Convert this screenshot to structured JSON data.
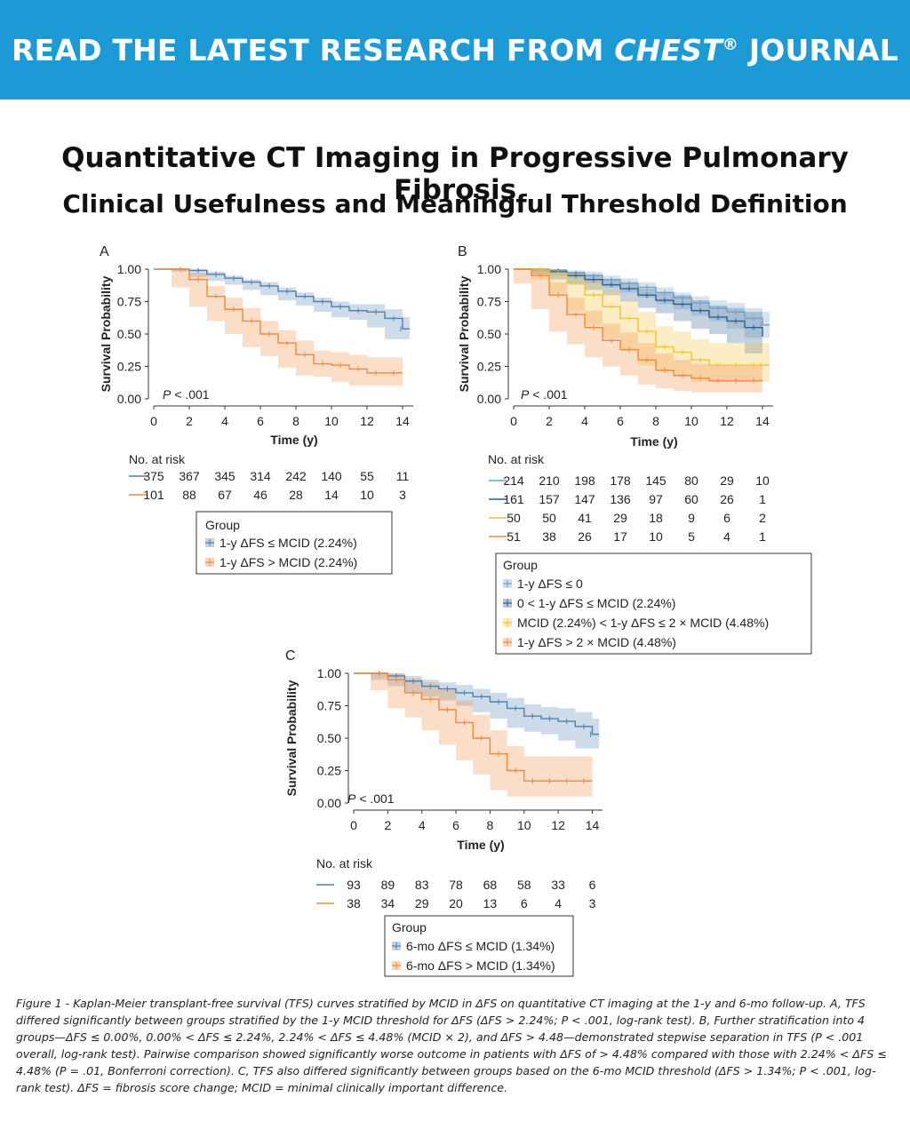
{
  "banner": {
    "text_before": "READ THE LATEST RESEARCH FROM ",
    "brand": "CHEST",
    "reg": "®",
    "text_after": " JOURNAL"
  },
  "title": "Quantitative CT Imaging in Progressive Pulmonary Fibrosis",
  "subtitle": "Clinical Usefulness and Meaningful Threshold Definition",
  "caption": "Figure 1 - Kaplan-Meier transplant-free survival (TFS) curves stratified by MCID in ΔFS on quantitative CT imaging at the 1-y and 6-mo follow-up. A, TFS differed significantly between groups stratified by the 1-y MCID threshold for ΔFS (ΔFS > 2.24%; P < .001, log-rank test). B, Further stratification into 4 groups—ΔFS ≤ 0.00%, 0.00% < ΔFS ≤ 2.24%, 2.24% < ΔFS ≤ 4.48% (MCID × 2), and ΔFS > 4.48—demonstrated stepwise separation in TFS (P < .001 overall, log-rank test). Pairwise comparison showed significantly worse outcome in patients with ΔFS of > 4.48% compared with those with 2.24% < ΔFS ≤ 4.48% (P = .01, Bonferroni correction). C, TFS also differed significantly between groups based on the 6-mo MCID threshold (ΔFS > 1.34%; P < .001, log-rank test). ΔFS = fibrosis score change; MCID = minimal clinically important difference.",
  "colors": {
    "banner": "#1c9ad6",
    "blue_light": "#6f9fc6",
    "blue_dark": "#2c5f8e",
    "yellow": "#f2c232",
    "orange": "#ef8a3a"
  },
  "chart_data": [
    {
      "panel": "A",
      "type": "line",
      "xlabel": "Time (y)",
      "ylabel": "Survival Probability",
      "xlim": [
        0,
        14.6
      ],
      "ylim": [
        0,
        1
      ],
      "x_ticks": [
        0,
        2,
        4,
        6,
        8,
        10,
        12,
        14
      ],
      "y_ticks": [
        "0.00",
        "0.25",
        "0.50",
        "0.75",
        "1.00"
      ],
      "pvalue_prefix": "P",
      "pvalue_text": " < .001",
      "risk_title": "No. at risk",
      "legend_title": "Group",
      "series": [
        {
          "name": "1-y ΔFS ≤ MCID (2.24%)",
          "color": "#4f7fae",
          "risk": [
            "375",
            "367",
            "345",
            "314",
            "242",
            "140",
            "55",
            "11"
          ],
          "x": [
            0,
            1,
            2,
            3,
            4,
            5,
            6,
            7,
            8,
            9,
            10,
            11,
            12,
            13,
            14,
            14.4
          ],
          "y": [
            1.0,
            1.0,
            0.99,
            0.96,
            0.93,
            0.9,
            0.87,
            0.83,
            0.79,
            0.75,
            0.71,
            0.68,
            0.67,
            0.62,
            0.54,
            0.54
          ],
          "lower": [
            1.0,
            1.0,
            0.98,
            0.94,
            0.91,
            0.88,
            0.84,
            0.8,
            0.76,
            0.72,
            0.67,
            0.63,
            0.61,
            0.55,
            0.46,
            0.46
          ],
          "upper": [
            1.0,
            1.0,
            1.0,
            0.98,
            0.95,
            0.92,
            0.9,
            0.86,
            0.82,
            0.78,
            0.75,
            0.73,
            0.73,
            0.69,
            0.63,
            0.63
          ]
        },
        {
          "name": "1-y ΔFS > MCID (2.24%)",
          "color": "#ef8a3a",
          "risk": [
            "101",
            "88",
            "67",
            "46",
            "28",
            "14",
            "10",
            "3"
          ],
          "x": [
            0,
            1,
            2,
            3,
            4,
            5,
            6,
            7,
            8,
            9,
            10,
            11,
            12,
            13,
            14
          ],
          "y": [
            1.0,
            1.0,
            0.92,
            0.79,
            0.69,
            0.6,
            0.5,
            0.43,
            0.34,
            0.27,
            0.26,
            0.23,
            0.2,
            0.2,
            0.2
          ],
          "lower": [
            1.0,
            1.0,
            0.86,
            0.71,
            0.6,
            0.5,
            0.4,
            0.33,
            0.24,
            0.18,
            0.17,
            0.13,
            0.1,
            0.1,
            0.1
          ],
          "upper": [
            1.0,
            1.0,
            0.97,
            0.87,
            0.78,
            0.7,
            0.6,
            0.53,
            0.45,
            0.37,
            0.36,
            0.34,
            0.32,
            0.32,
            0.32
          ]
        }
      ]
    },
    {
      "panel": "B",
      "type": "line",
      "xlabel": "Time (y)",
      "ylabel": "Survival Probability",
      "xlim": [
        0,
        14.6
      ],
      "ylim": [
        0,
        1
      ],
      "x_ticks": [
        0,
        2,
        4,
        6,
        8,
        10,
        12,
        14
      ],
      "y_ticks": [
        "0.00",
        "0.25",
        "0.50",
        "0.75",
        "1.00"
      ],
      "pvalue_prefix": "P",
      "pvalue_text": " < .001",
      "risk_title": "No. at risk",
      "legend_title": "Group",
      "series": [
        {
          "name": "1-y ΔFS ≤ 0",
          "color": "#6f9fc6",
          "risk": [
            "214",
            "210",
            "198",
            "178",
            "145",
            "80",
            "29",
            "10"
          ],
          "x": [
            0,
            1,
            2,
            3,
            4,
            5,
            6,
            7,
            8,
            9,
            10,
            11,
            12,
            13,
            14,
            14.4
          ],
          "y": [
            1.0,
            1.0,
            0.99,
            0.97,
            0.95,
            0.92,
            0.89,
            0.86,
            0.82,
            0.78,
            0.74,
            0.7,
            0.67,
            0.62,
            0.57,
            0.57
          ],
          "lower": [
            1.0,
            1.0,
            0.98,
            0.95,
            0.93,
            0.89,
            0.86,
            0.82,
            0.78,
            0.73,
            0.69,
            0.64,
            0.6,
            0.54,
            0.47,
            0.47
          ],
          "upper": [
            1.0,
            1.0,
            1.0,
            0.99,
            0.98,
            0.95,
            0.93,
            0.9,
            0.86,
            0.82,
            0.79,
            0.76,
            0.74,
            0.7,
            0.67,
            0.67
          ]
        },
        {
          "name": "0 < 1-y ΔFS ≤ MCID (2.24%)",
          "color": "#2c5f8e",
          "risk": [
            "161",
            "157",
            "147",
            "136",
            "97",
            "60",
            "26",
            "1"
          ],
          "x": [
            0,
            1,
            2,
            3,
            4,
            5,
            6,
            7,
            8,
            9,
            10,
            11,
            12,
            13,
            14
          ],
          "y": [
            1.0,
            1.0,
            0.98,
            0.95,
            0.92,
            0.88,
            0.85,
            0.8,
            0.76,
            0.73,
            0.68,
            0.63,
            0.6,
            0.55,
            0.48
          ],
          "lower": [
            1.0,
            1.0,
            0.96,
            0.92,
            0.88,
            0.84,
            0.8,
            0.75,
            0.7,
            0.66,
            0.6,
            0.54,
            0.5,
            0.43,
            0.35
          ],
          "upper": [
            1.0,
            1.0,
            1.0,
            0.98,
            0.96,
            0.92,
            0.9,
            0.85,
            0.82,
            0.8,
            0.76,
            0.72,
            0.7,
            0.67,
            0.62
          ]
        },
        {
          "name": "MCID (2.24%) < 1-y ΔFS ≤ 2 × MCID (4.48%)",
          "color": "#f2c232",
          "risk": [
            "50",
            "50",
            "41",
            "29",
            "18",
            "9",
            "6",
            "2"
          ],
          "x": [
            0,
            1,
            2,
            3,
            4,
            5,
            6,
            7,
            8,
            9,
            10,
            11,
            12,
            13,
            14,
            14.4
          ],
          "y": [
            1.0,
            1.0,
            0.97,
            0.9,
            0.8,
            0.71,
            0.62,
            0.52,
            0.4,
            0.36,
            0.3,
            0.26,
            0.26,
            0.26,
            0.26,
            0.26
          ],
          "lower": [
            1.0,
            1.0,
            0.92,
            0.81,
            0.68,
            0.57,
            0.47,
            0.37,
            0.26,
            0.22,
            0.17,
            0.13,
            0.13,
            0.13,
            0.13,
            0.13
          ],
          "upper": [
            1.0,
            1.0,
            1.0,
            0.97,
            0.91,
            0.84,
            0.76,
            0.67,
            0.56,
            0.52,
            0.46,
            0.43,
            0.43,
            0.43,
            0.43,
            0.43
          ]
        },
        {
          "name": "1-y ΔFS > 2 × MCID (4.48%)",
          "color": "#ef8a3a",
          "risk": [
            "51",
            "38",
            "26",
            "17",
            "10",
            "5",
            "4",
            "1"
          ],
          "x": [
            0,
            1,
            2,
            3,
            4,
            5,
            6,
            7,
            8,
            9,
            10,
            11,
            12,
            13,
            14
          ],
          "y": [
            1.0,
            0.95,
            0.8,
            0.65,
            0.55,
            0.45,
            0.38,
            0.3,
            0.22,
            0.18,
            0.16,
            0.14,
            0.14,
            0.14,
            0.14
          ],
          "lower": [
            1.0,
            0.89,
            0.69,
            0.52,
            0.42,
            0.32,
            0.25,
            0.18,
            0.11,
            0.08,
            0.06,
            0.05,
            0.05,
            0.05,
            0.05
          ],
          "upper": [
            1.0,
            1.0,
            0.9,
            0.78,
            0.68,
            0.58,
            0.51,
            0.43,
            0.35,
            0.3,
            0.27,
            0.26,
            0.26,
            0.26,
            0.26
          ]
        }
      ]
    },
    {
      "panel": "C",
      "type": "line",
      "xlabel": "Time (y)",
      "ylabel": "Survival Probability",
      "xlim": [
        0,
        14.6
      ],
      "ylim": [
        0,
        1
      ],
      "x_ticks": [
        0,
        2,
        4,
        6,
        8,
        10,
        12,
        14
      ],
      "y_ticks": [
        "0.00",
        "0.25",
        "0.50",
        "0.75",
        "1.00"
      ],
      "pvalue_prefix": "P",
      "pvalue_text": " < .001",
      "risk_title": "No. at risk",
      "legend_title": "Group",
      "series": [
        {
          "name": "6-mo ΔFS ≤ MCID (1.34%)",
          "color": "#4f7fae",
          "risk": [
            "93",
            "89",
            "83",
            "78",
            "68",
            "58",
            "33",
            "6"
          ],
          "x": [
            0,
            1,
            2,
            3,
            4,
            5,
            6,
            7,
            8,
            9,
            10,
            11,
            12,
            13,
            14,
            14.4
          ],
          "y": [
            1.0,
            1.0,
            0.98,
            0.94,
            0.9,
            0.88,
            0.85,
            0.82,
            0.78,
            0.73,
            0.67,
            0.65,
            0.63,
            0.59,
            0.53,
            0.53
          ],
          "lower": [
            1.0,
            1.0,
            0.95,
            0.9,
            0.85,
            0.82,
            0.79,
            0.75,
            0.7,
            0.65,
            0.58,
            0.55,
            0.53,
            0.48,
            0.42,
            0.42
          ],
          "upper": [
            1.0,
            1.0,
            1.0,
            0.98,
            0.95,
            0.93,
            0.91,
            0.88,
            0.85,
            0.81,
            0.76,
            0.74,
            0.73,
            0.7,
            0.65,
            0.65
          ]
        },
        {
          "name": "6-mo ΔFS > MCID (1.34%)",
          "color": "#ef8a3a",
          "risk": [
            "38",
            "34",
            "29",
            "20",
            "13",
            "6",
            "4",
            "3"
          ],
          "x": [
            0,
            1,
            2,
            3,
            4,
            5,
            6,
            7,
            8,
            9,
            10,
            11,
            12,
            13,
            14
          ],
          "y": [
            1.0,
            1.0,
            0.95,
            0.85,
            0.8,
            0.72,
            0.62,
            0.5,
            0.38,
            0.25,
            0.17,
            0.17,
            0.17,
            0.17,
            0.17
          ],
          "lower": [
            1.0,
            1.0,
            0.87,
            0.73,
            0.66,
            0.56,
            0.45,
            0.33,
            0.22,
            0.1,
            0.05,
            0.05,
            0.05,
            0.05,
            0.05
          ],
          "upper": [
            1.0,
            1.0,
            1.0,
            0.96,
            0.93,
            0.87,
            0.79,
            0.68,
            0.56,
            0.44,
            0.36,
            0.36,
            0.36,
            0.36,
            0.36
          ]
        }
      ]
    }
  ]
}
